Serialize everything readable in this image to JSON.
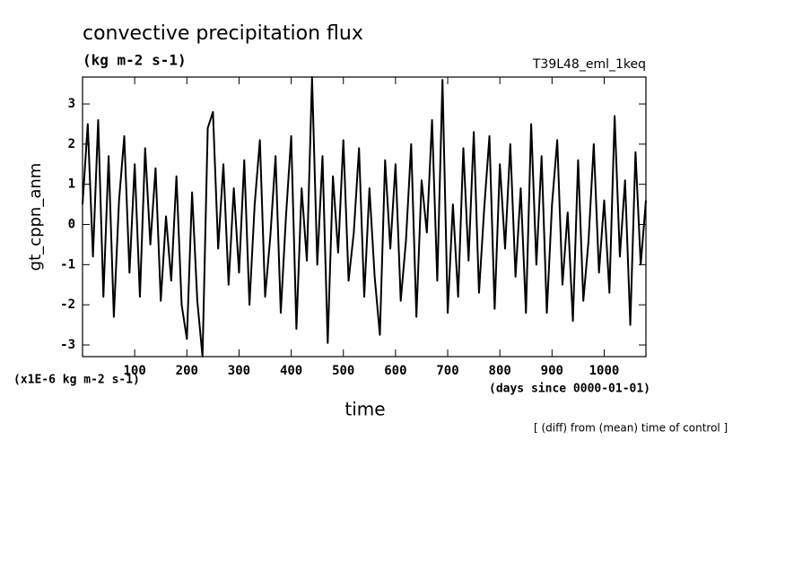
{
  "chart_data": {
    "type": "line",
    "title": "convective precipitation flux",
    "subtitle": "(kg m-2 s-1)",
    "annotation_right": "T39L48_eml_1keq",
    "y_label": "gt_cppn_anm",
    "x_label": "time",
    "y_unit_label": "(x1E-6 kg m-2 s-1)",
    "x_unit_label": "(days since 0000-01-01)",
    "footnote": "[ (diff) from (mean) time of control ]",
    "x": [
      0,
      10,
      20,
      30,
      40,
      50,
      60,
      70,
      80,
      90,
      100,
      110,
      120,
      130,
      140,
      150,
      160,
      170,
      180,
      190,
      200,
      210,
      220,
      230,
      240,
      250,
      260,
      270,
      280,
      290,
      300,
      310,
      320,
      330,
      340,
      350,
      360,
      370,
      380,
      390,
      400,
      410,
      420,
      430,
      440,
      450,
      460,
      470,
      480,
      490,
      500,
      510,
      520,
      530,
      540,
      550,
      560,
      570,
      580,
      590,
      600,
      610,
      620,
      630,
      640,
      650,
      660,
      670,
      680,
      690,
      700,
      710,
      720,
      730,
      740,
      750,
      760,
      770,
      780,
      790,
      800,
      810,
      820,
      830,
      840,
      850,
      860,
      870,
      880,
      890,
      900,
      910,
      920,
      930,
      940,
      950,
      960,
      970,
      980,
      990,
      1000,
      1010,
      1020,
      1030,
      1040,
      1050,
      1060,
      1070,
      1080
    ],
    "series": [
      {
        "name": "gt_cppn_anm",
        "color": "#000000",
        "values": [
          0.5,
          2.5,
          -0.8,
          2.6,
          -1.8,
          1.7,
          -2.3,
          0.6,
          2.2,
          -1.2,
          1.5,
          -1.8,
          1.9,
          -0.5,
          1.4,
          -1.9,
          0.2,
          -1.4,
          1.2,
          -2.0,
          -2.85,
          0.8,
          -1.9,
          -3.29,
          2.4,
          2.8,
          -0.6,
          1.5,
          -1.5,
          0.9,
          -1.2,
          1.6,
          -2.0,
          0.5,
          2.1,
          -1.8,
          -0.3,
          1.7,
          -2.2,
          0.2,
          2.2,
          -2.6,
          0.9,
          -0.9,
          3.67,
          -1.0,
          1.7,
          -2.95,
          1.2,
          -0.7,
          2.1,
          -1.4,
          -0.2,
          1.9,
          -1.8,
          0.9,
          -1.3,
          -2.75,
          1.6,
          -0.6,
          1.5,
          -1.9,
          -0.4,
          2.0,
          -2.3,
          1.1,
          -0.2,
          2.6,
          -1.4,
          3.6,
          -2.2,
          0.5,
          -1.8,
          1.9,
          -0.9,
          2.3,
          -1.7,
          0.4,
          2.2,
          -2.1,
          1.5,
          -0.6,
          2.0,
          -1.3,
          0.9,
          -2.2,
          2.5,
          -1.0,
          1.7,
          -2.2,
          0.5,
          2.1,
          -1.5,
          0.3,
          -2.4,
          1.6,
          -1.9,
          -0.4,
          2.0,
          -1.2,
          0.6,
          -1.7,
          2.7,
          -0.8,
          1.1,
          -2.5,
          1.8,
          -1.0,
          0.6
        ]
      }
    ],
    "xlim": [
      0,
      1080
    ],
    "ylim": [
      -3.29,
      3.67
    ],
    "xticks": [
      100,
      200,
      300,
      400,
      500,
      600,
      700,
      800,
      900,
      1000
    ],
    "yticks": [
      -3,
      -2,
      -1,
      0,
      1,
      2,
      3
    ]
  }
}
